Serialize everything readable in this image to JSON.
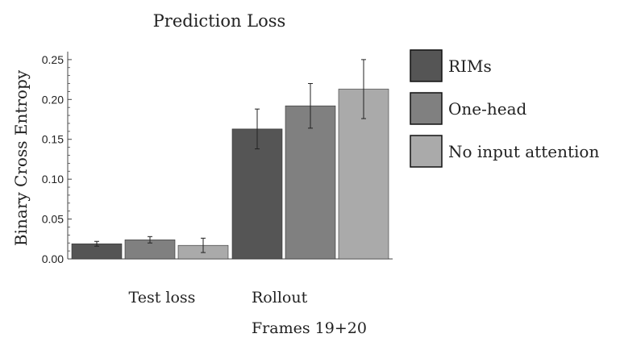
{
  "chart_data": {
    "type": "bar",
    "title": "Prediction Loss",
    "ylabel": "Binary Cross Entropy",
    "xlabel": "",
    "ylim": [
      0,
      0.26
    ],
    "yticks": [
      "0.00",
      "0.05",
      "0.10",
      "0.15",
      "0.20",
      "0.25"
    ],
    "categories": [
      "Test loss",
      "Rollout\nFrames 19+20"
    ],
    "category_lines": [
      [
        "Test loss"
      ],
      [
        "Rollout",
        "Frames 19+20"
      ]
    ],
    "series": [
      {
        "name": "RIMs",
        "color": "#555555",
        "values": [
          0.019,
          0.163
        ],
        "errors": [
          0.003,
          0.025
        ]
      },
      {
        "name": "One-head",
        "color": "#808080",
        "values": [
          0.024,
          0.192
        ],
        "errors": [
          0.004,
          0.028
        ]
      },
      {
        "name": "No input attention",
        "color": "#aaaaaa",
        "values": [
          0.017,
          0.213
        ],
        "errors": [
          0.009,
          0.037
        ]
      }
    ],
    "legend_position": "right",
    "grid": false
  }
}
